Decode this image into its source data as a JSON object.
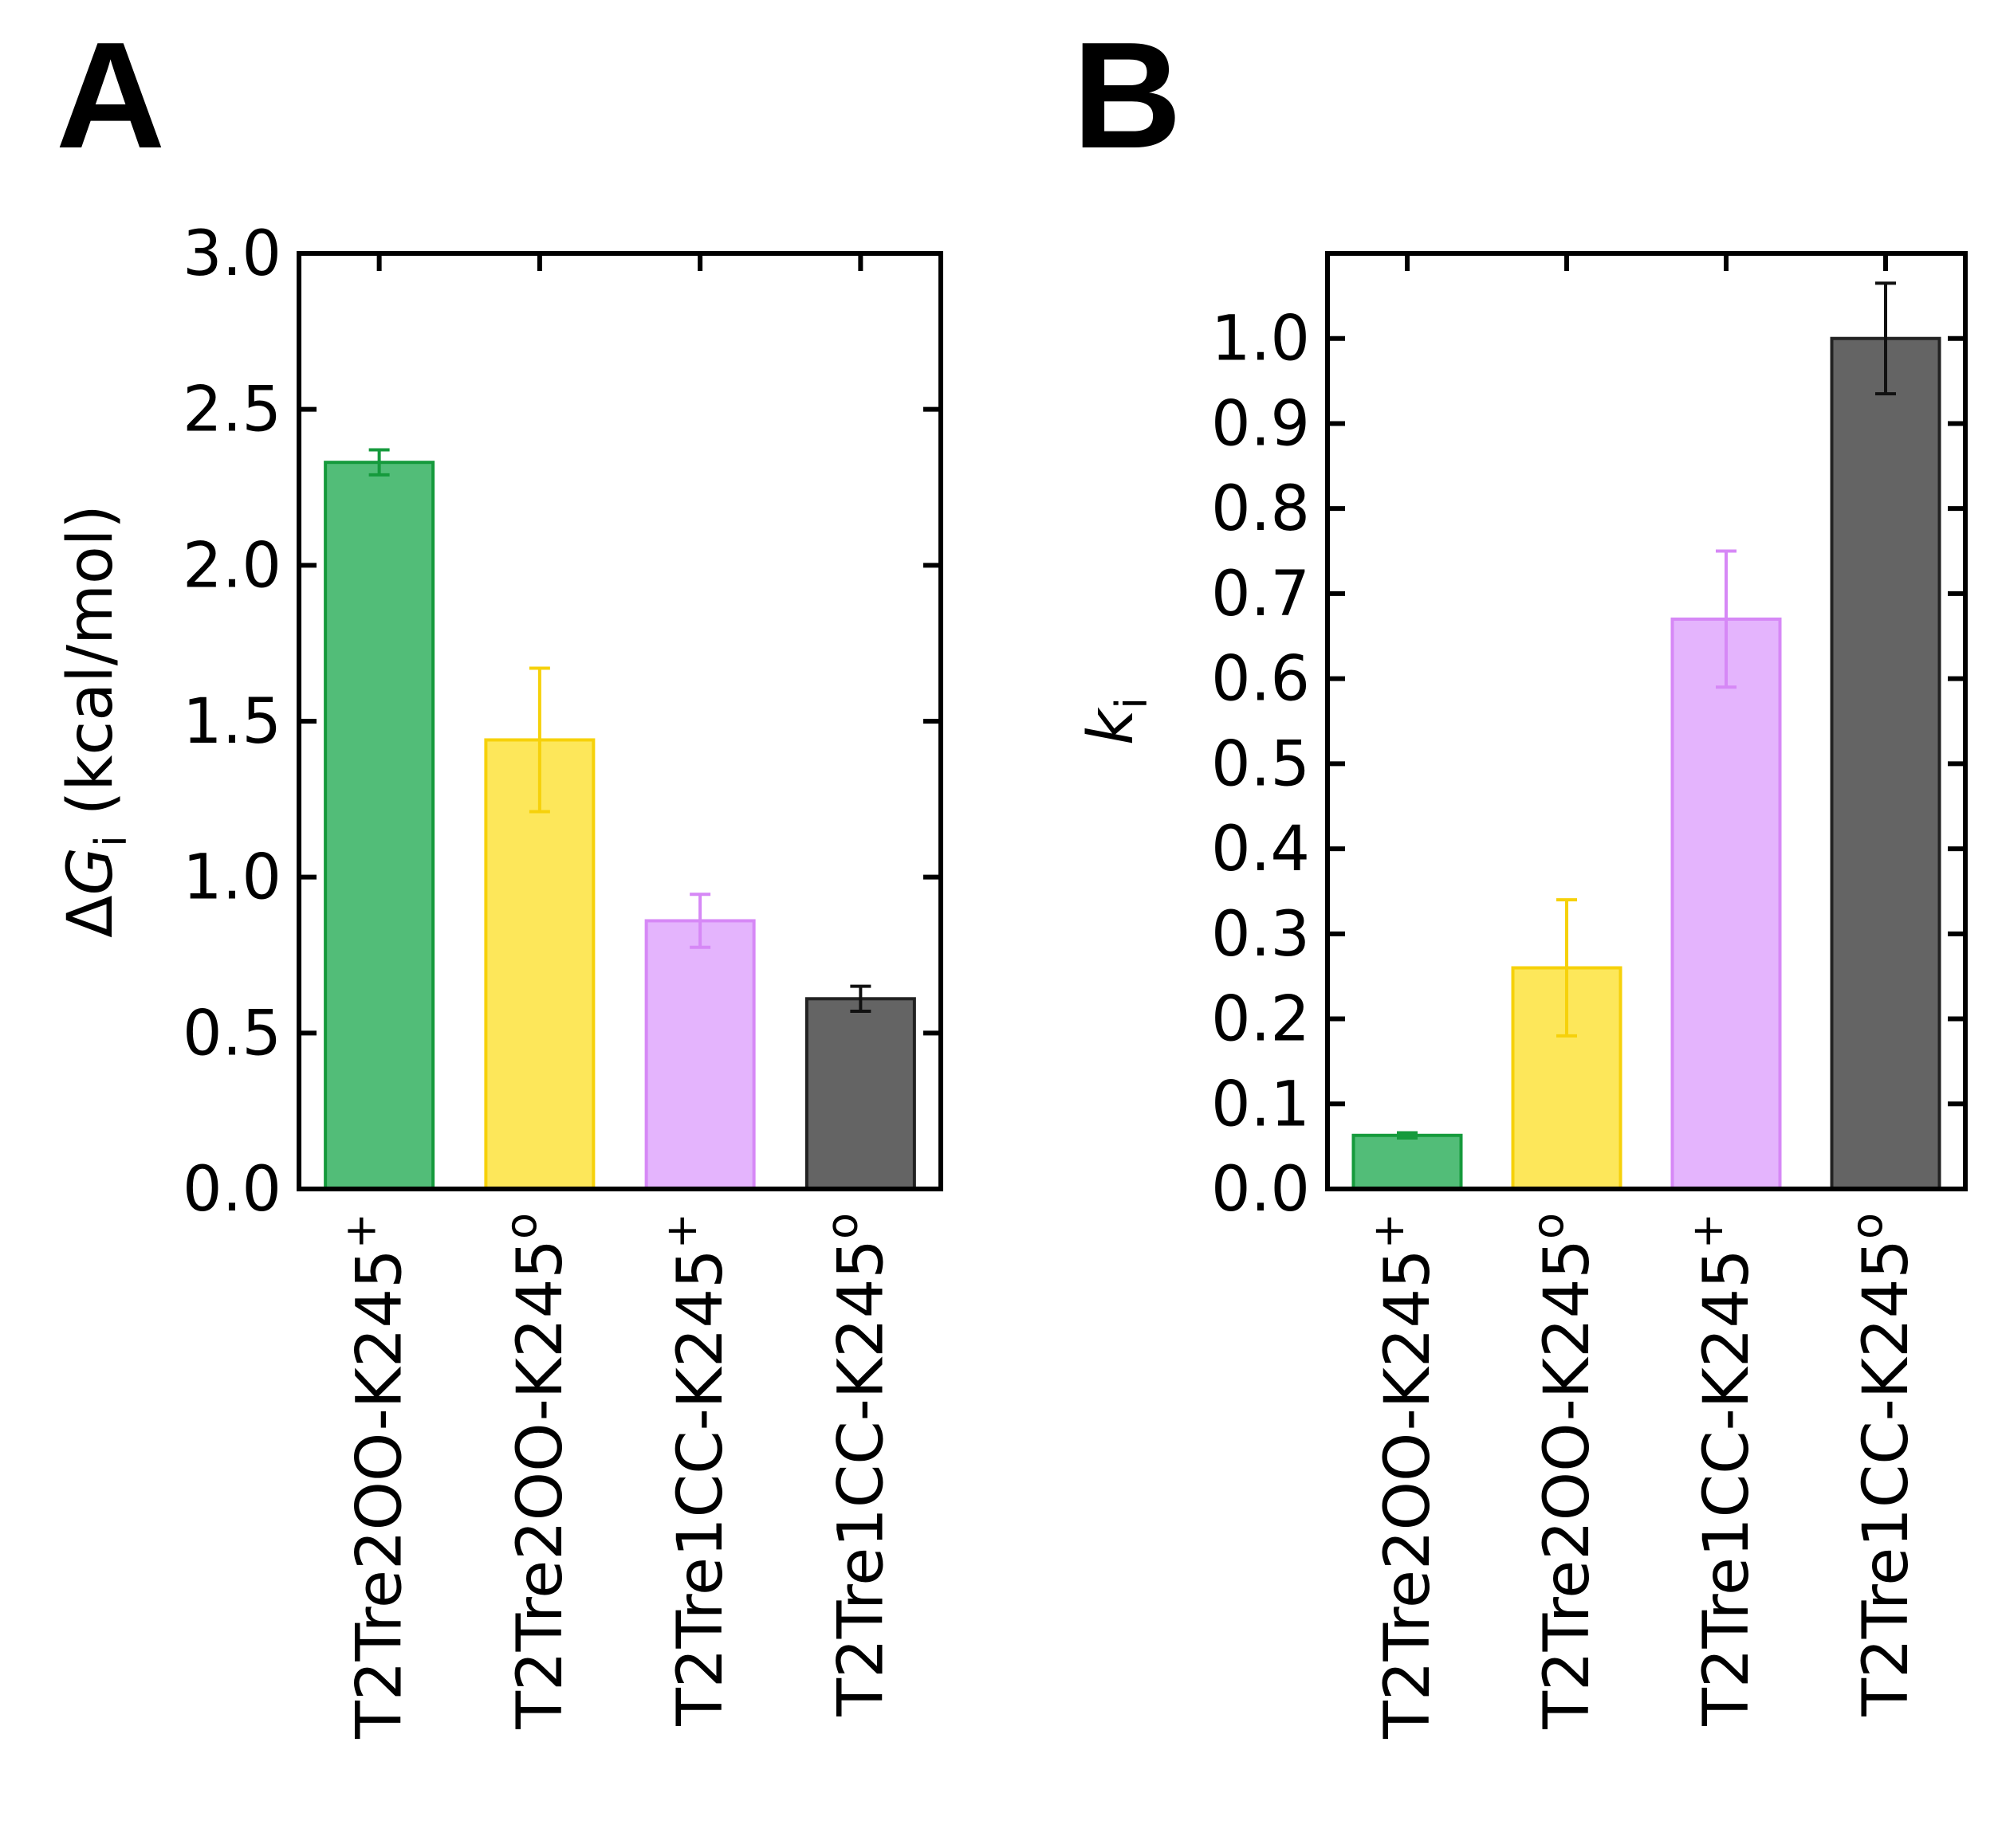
{
  "panels": {
    "a": {
      "letter": "A"
    },
    "b": {
      "letter": "B"
    }
  },
  "chart_data": [
    {
      "type": "bar",
      "panel": "A",
      "categories": [
        "T2Tre2OO-K245",
        "T2Tre2OO-K245",
        "T2Tre1CC-K245",
        "T2Tre1CC-K245"
      ],
      "category_superscripts": [
        "+",
        "o",
        "+",
        "o"
      ],
      "values": [
        2.33,
        1.44,
        0.86,
        0.61
      ],
      "errors": [
        0.04,
        0.23,
        0.085,
        0.04
      ],
      "colors": {
        "fill": [
          "#52bd78",
          "#fde75a",
          "#e4b4fd",
          "#646464"
        ],
        "stroke": [
          "#159a3c",
          "#f6d10a",
          "#d688f6",
          "#222222"
        ],
        "error": [
          "#159a3c",
          "#f6d10a",
          "#d688f6",
          "#111111"
        ]
      },
      "ylabel": {
        "prefix": "Δ",
        "symbol": "G",
        "subscript": "i",
        "unit": " (kcal/mol)"
      },
      "ylim": [
        0,
        3.0
      ],
      "yticks": [
        "0.0",
        "0.5",
        "1.0",
        "1.5",
        "2.0",
        "2.5",
        "3.0"
      ],
      "grid": false
    },
    {
      "type": "bar",
      "panel": "B",
      "categories": [
        "T2Tre2OO-K245",
        "T2Tre2OO-K245",
        "T2Tre1CC-K245",
        "T2Tre1CC-K245"
      ],
      "category_superscripts": [
        "+",
        "o",
        "+",
        "o"
      ],
      "values": [
        0.063,
        0.26,
        0.67,
        1.0
      ],
      "errors": [
        0.003,
        0.08,
        0.08,
        0.065
      ],
      "colors": {
        "fill": [
          "#52bd78",
          "#fde75a",
          "#e4b4fd",
          "#646464"
        ],
        "stroke": [
          "#159a3c",
          "#f6d10a",
          "#d688f6",
          "#222222"
        ],
        "error": [
          "#159a3c",
          "#f6d10a",
          "#d688f6",
          "#111111"
        ]
      },
      "ylabel": {
        "prefix": "",
        "symbol": "k",
        "subscript": "i",
        "unit": ""
      },
      "ylim": [
        0,
        1.1
      ],
      "yticks": [
        "0.0",
        "0.1",
        "0.2",
        "0.3",
        "0.4",
        "0.5",
        "0.6",
        "0.7",
        "0.8",
        "0.9",
        "1.0"
      ],
      "grid": false
    }
  ]
}
